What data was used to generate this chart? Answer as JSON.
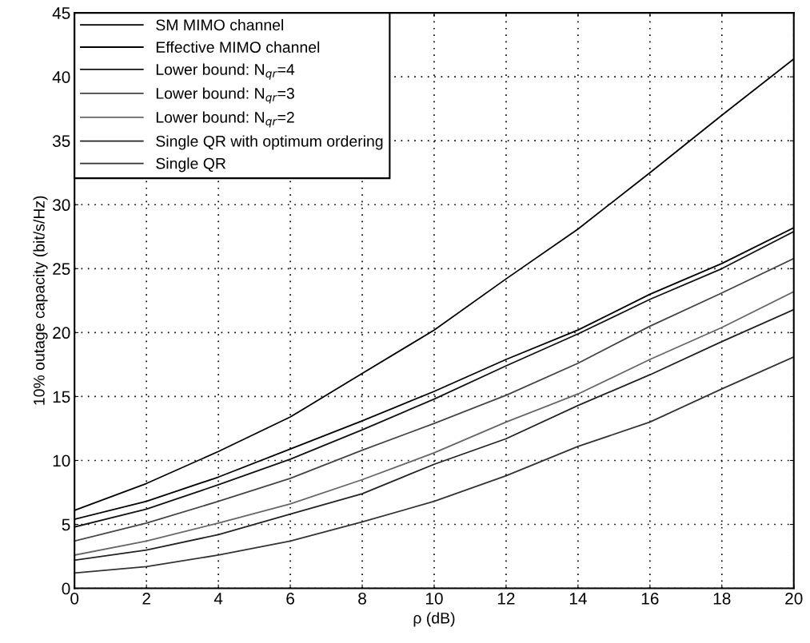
{
  "chart_data": {
    "type": "line",
    "xlabel": "ρ (dB)",
    "ylabel": "10% outage capacity (bit/s/Hz)",
    "x": [
      0,
      2,
      4,
      6,
      8,
      10,
      12,
      14,
      16,
      18,
      20
    ],
    "series": [
      {
        "name": "SM MIMO channel",
        "color": "#000000",
        "values": [
          6.1,
          8.2,
          10.7,
          13.4,
          16.8,
          20.2,
          24.2,
          28.1,
          32.5,
          37.0,
          41.4
        ]
      },
      {
        "name": "Effective MIMO channel",
        "color": "#000000",
        "values": [
          5.4,
          6.8,
          8.7,
          10.9,
          13.1,
          15.4,
          17.9,
          20.2,
          23.0,
          25.4,
          28.2
        ]
      },
      {
        "name": "Lower bound: N$_{qr}$=4",
        "color": "#111111",
        "values": [
          4.8,
          6.2,
          8.1,
          10.1,
          12.4,
          14.8,
          17.4,
          19.9,
          22.6,
          25.0,
          27.9
        ]
      },
      {
        "name": "Lower bound: N$_{qr}$=3",
        "color": "#444444",
        "values": [
          3.7,
          5.1,
          6.8,
          8.6,
          10.8,
          12.9,
          15.1,
          17.6,
          20.5,
          23.1,
          25.8
        ]
      },
      {
        "name": "Lower bound: N$_{qr}$=2",
        "color": "#666666",
        "values": [
          2.6,
          3.7,
          5.1,
          6.6,
          8.5,
          10.6,
          13.0,
          15.2,
          17.9,
          20.4,
          23.2
        ]
      },
      {
        "name": "Single QR with optimum ordering",
        "color": "#222222",
        "values": [
          2.2,
          3.0,
          4.2,
          5.8,
          7.4,
          9.7,
          11.7,
          14.3,
          16.7,
          19.3,
          21.8
        ]
      },
      {
        "name": "Single QR",
        "color": "#333333",
        "values": [
          1.2,
          1.7,
          2.6,
          3.7,
          5.2,
          6.8,
          8.8,
          11.1,
          13.0,
          15.6,
          18.1
        ]
      }
    ],
    "xlim": [
      0,
      20
    ],
    "xticks": [
      0,
      2,
      4,
      6,
      8,
      10,
      12,
      14,
      16,
      18,
      20
    ],
    "ylim": [
      0,
      45
    ],
    "yticks": [
      0,
      5,
      10,
      15,
      20,
      25,
      30,
      35,
      40,
      45
    ],
    "grid": true,
    "legend": "top left",
    "line_style": "solid",
    "marker": "none"
  }
}
